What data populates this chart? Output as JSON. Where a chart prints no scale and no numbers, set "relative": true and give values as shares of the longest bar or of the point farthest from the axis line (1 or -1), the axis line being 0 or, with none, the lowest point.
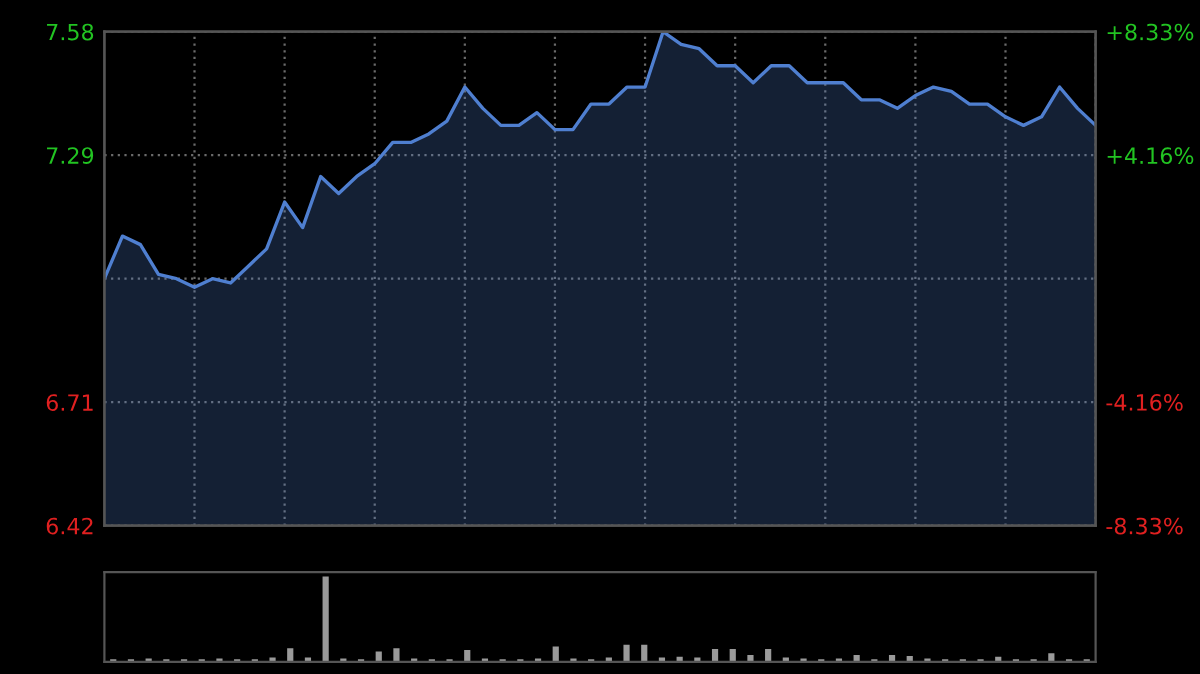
{
  "chart_data": [
    {
      "type": "area",
      "categories": [
        null,
        null,
        null,
        null,
        null,
        null,
        null,
        null,
        null,
        null,
        null,
        null,
        null,
        null,
        null,
        null,
        null,
        null,
        null,
        null,
        null,
        null,
        null,
        null,
        null,
        null,
        null,
        null,
        null,
        null,
        null,
        null,
        null,
        null,
        null,
        null,
        null,
        null,
        null,
        null,
        null,
        null,
        null,
        null,
        null,
        null,
        null,
        null,
        null,
        null,
        null,
        null,
        null,
        null,
        null,
        null
      ],
      "series": [
        {
          "color": "#4f7fd0",
          "values": [
            7.0,
            7.1,
            7.08,
            7.01,
            7.0,
            6.98,
            7.0,
            6.99,
            7.03,
            7.07,
            7.18,
            7.12,
            7.24,
            7.2,
            7.24,
            7.27,
            7.32,
            7.32,
            7.34,
            7.37,
            7.45,
            7.4,
            7.36,
            7.36,
            7.39,
            7.35,
            7.35,
            7.41,
            7.41,
            7.45,
            7.45,
            7.58,
            7.55,
            7.54,
            7.5,
            7.5,
            7.46,
            7.5,
            7.5,
            7.46,
            7.46,
            7.46,
            7.42,
            7.42,
            7.4,
            7.43,
            7.45,
            7.44,
            7.41,
            7.41,
            7.38,
            7.36,
            7.38,
            7.45,
            7.4,
            7.36
          ]
        }
      ],
      "ylim": [
        6.42,
        7.58
      ],
      "yticks": [
        7.58,
        7.29,
        {
          "value": 7.0,
          "label": null
        },
        6.71,
        6.42
      ],
      "y2lim": [
        -8.33,
        8.33
      ],
      "y2ticks": [
        {
          "value": 8.33,
          "label": "+8.33%"
        },
        {
          "value": 4.16,
          "label": "+4.16%"
        },
        {
          "value": 0,
          "label": null
        },
        {
          "value": -4.16,
          "label": "-4.16%"
        },
        {
          "value": -8.33,
          "label": "-8.33%"
        }
      ],
      "grid": true
    },
    {
      "type": "bar",
      "relative": true,
      "categories": [
        null,
        null,
        null,
        null,
        null,
        null,
        null,
        null,
        null,
        null,
        null,
        null,
        null,
        null,
        null,
        null,
        null,
        null,
        null,
        null,
        null,
        null,
        null,
        null,
        null,
        null,
        null,
        null,
        null,
        null,
        null,
        null,
        null,
        null,
        null,
        null,
        null,
        null,
        null,
        null,
        null,
        null,
        null,
        null,
        null,
        null,
        null,
        null,
        null,
        null,
        null,
        null,
        null,
        null,
        null,
        null
      ],
      "series": [
        {
          "color": "#9a9a9a",
          "values": [
            0.03,
            0.03,
            0.04,
            0.03,
            0.03,
            0.03,
            0.04,
            0.03,
            0.03,
            0.05,
            0.16,
            0.05,
            1.0,
            0.04,
            0.03,
            0.12,
            0.16,
            0.04,
            0.03,
            0.03,
            0.14,
            0.04,
            0.03,
            0.03,
            0.04,
            0.18,
            0.04,
            0.03,
            0.05,
            0.2,
            0.2,
            0.05,
            0.06,
            0.05,
            0.15,
            0.15,
            0.08,
            0.15,
            0.05,
            0.04,
            0.03,
            0.04,
            0.08,
            0.03,
            0.08,
            0.07,
            0.04,
            0.03,
            0.03,
            0.03,
            0.06,
            0.03,
            0.03,
            0.1,
            0.03,
            0.03
          ]
        }
      ]
    }
  ]
}
